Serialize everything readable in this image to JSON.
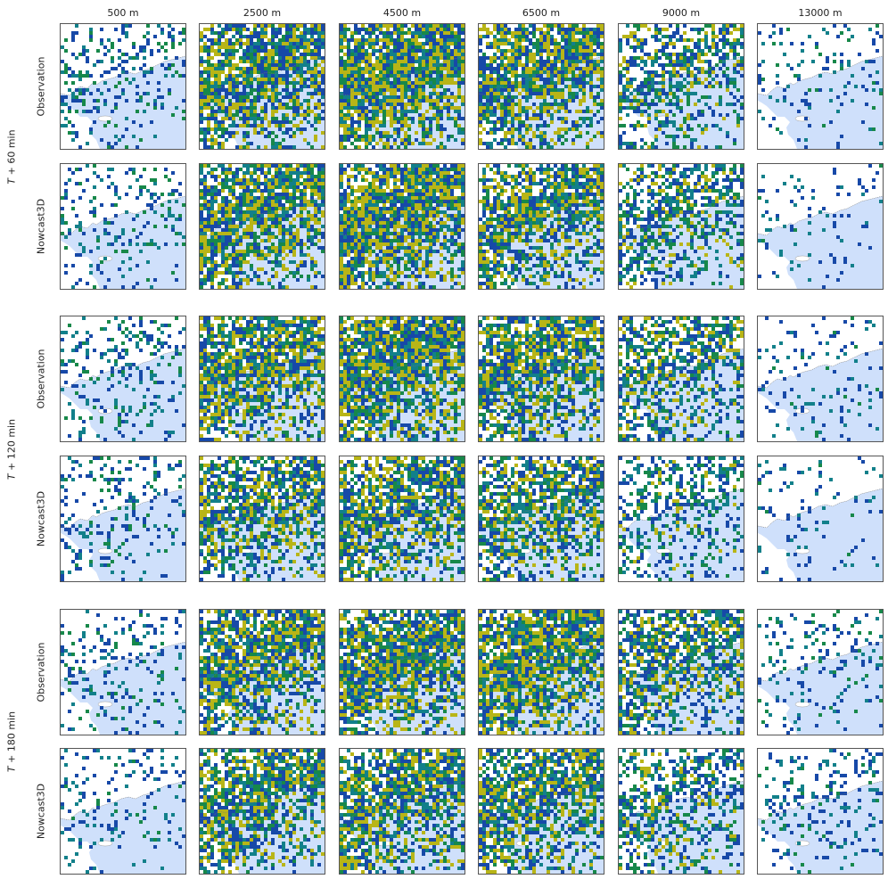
{
  "columns": [
    "500 m",
    "2500 m",
    "4500 m",
    "6500 m",
    "9000 m",
    "13000 m"
  ],
  "groups": [
    {
      "time_var": "T",
      "time_rest": " + 60 min",
      "rows": [
        "Observation",
        "Nowcast3D"
      ]
    },
    {
      "time_var": "T",
      "time_rest": " + 120 min",
      "rows": [
        "Observation",
        "Nowcast3D"
      ]
    },
    {
      "time_var": "T",
      "time_rest": " + 180 min",
      "rows": [
        "Observation",
        "Nowcast3D"
      ]
    }
  ],
  "colors": {
    "sea": "#cfe0fb",
    "land": "#ffffff",
    "level_1": "#1749a8",
    "level_2": "#12808a",
    "level_3": "#17884a",
    "level_4": "#b8b517"
  },
  "echo_coverage": [
    [
      [
        0.18,
        0.62,
        0.72,
        0.62,
        0.42,
        0.1
      ],
      [
        0.14,
        0.62,
        0.7,
        0.56,
        0.4,
        0.06
      ]
    ],
    [
      [
        0.16,
        0.6,
        0.68,
        0.6,
        0.44,
        0.08
      ],
      [
        0.14,
        0.52,
        0.58,
        0.52,
        0.3,
        0.06
      ]
    ],
    [
      [
        0.14,
        0.6,
        0.64,
        0.66,
        0.5,
        0.12
      ],
      [
        0.1,
        0.56,
        0.56,
        0.56,
        0.38,
        0.14
      ]
    ]
  ]
}
